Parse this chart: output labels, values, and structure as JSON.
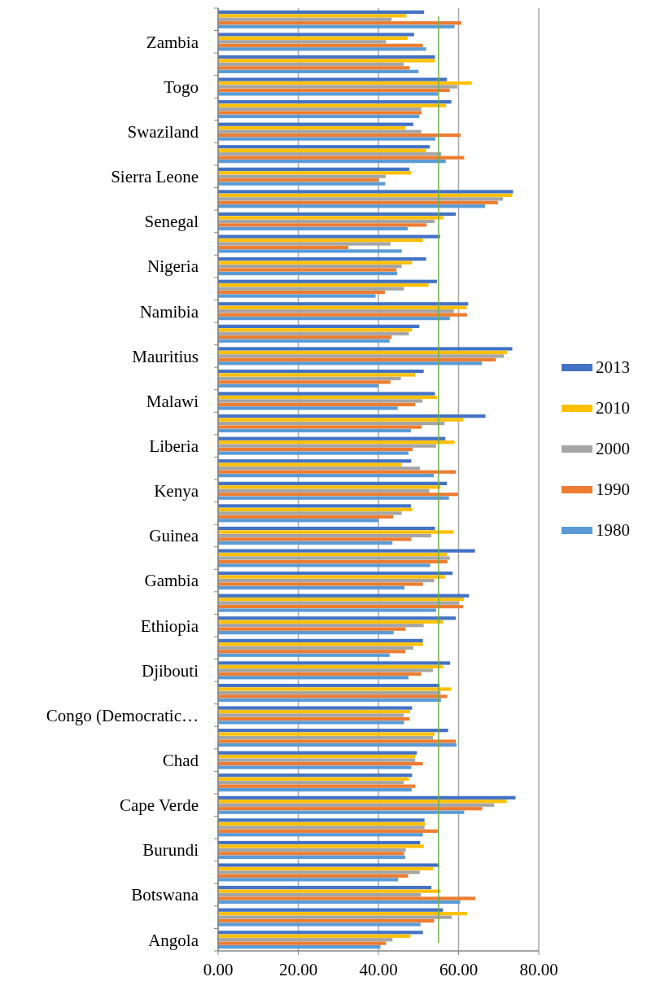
{
  "chart_data": {
    "type": "bar",
    "orientation": "horizontal",
    "categories": [
      null,
      "Zambia",
      null,
      "Togo",
      null,
      "Swaziland",
      null,
      "Sierra Leone",
      null,
      "Senegal",
      null,
      "Nigeria",
      null,
      "Namibia",
      null,
      "Mauritius",
      null,
      "Malawi",
      null,
      "Liberia",
      null,
      "Kenya",
      null,
      "Guinea",
      null,
      "Gambia",
      null,
      "Ethiopia",
      null,
      "Djibouti",
      null,
      "Congo (Democratic…",
      null,
      "Chad",
      null,
      "Cape Verde",
      null,
      "Burundi",
      null,
      "Botswana",
      null,
      "Angola"
    ],
    "series": [
      {
        "name": "2013",
        "color": "#4472c4",
        "values": [
          51.4,
          48.9,
          54.1,
          57.1,
          58.2,
          48.7,
          52.8,
          47.7,
          73.6,
          59.3,
          55.4,
          51.9,
          54.6,
          62.4,
          50.2,
          73.4,
          51.3,
          54.1,
          66.7,
          56.7,
          48.2,
          57.1,
          48.1,
          54.1,
          64.1,
          58.5,
          62.6,
          59.3,
          51.1,
          57.9,
          55.3,
          48.4,
          57.4,
          49.6,
          48.4,
          74.2,
          51.5,
          50.4,
          55.2,
          53.2,
          56.1,
          51.1
        ]
      },
      {
        "name": "2010",
        "color": "#ffc000",
        "values": [
          47.0,
          47.3,
          54.1,
          63.3,
          56.9,
          46.8,
          51.9,
          48.2,
          73.4,
          56.2,
          51.1,
          48.4,
          52.5,
          62.0,
          48.4,
          72.1,
          49.2,
          54.6,
          61.2,
          59.0,
          45.8,
          55.5,
          48.5,
          58.8,
          57.1,
          56.6,
          61.3,
          56.1,
          51.1,
          56.1,
          58.2,
          47.9,
          54.0,
          49.2,
          47.6,
          72.0,
          51.7,
          51.3,
          53.7,
          55.5,
          62.2,
          48.0
        ]
      },
      {
        "name": "2000",
        "color": "#a5a5a5",
        "values": [
          43.3,
          41.9,
          46.3,
          59.7,
          50.7,
          50.7,
          55.7,
          41.8,
          71.1,
          54.0,
          43.0,
          45.8,
          46.4,
          58.8,
          47.6,
          71.3,
          45.6,
          51.0,
          56.5,
          54.4,
          50.4,
          52.7,
          45.8,
          53.2,
          57.8,
          53.9,
          60.1,
          51.3,
          48.7,
          53.6,
          55.5,
          46.3,
          53.6,
          49.2,
          46.3,
          68.9,
          51.5,
          46.8,
          50.3,
          50.6,
          58.3,
          43.5
        ]
      },
      {
        "name": "1990",
        "color": "#ed7d31",
        "values": [
          60.7,
          51.1,
          47.8,
          57.8,
          50.8,
          60.5,
          61.4,
          40.0,
          69.8,
          52.0,
          32.5,
          44.5,
          41.6,
          62.1,
          43.3,
          69.3,
          43.0,
          49.2,
          50.8,
          48.5,
          59.3,
          59.9,
          43.7,
          48.2,
          57.2,
          51.1,
          61.1,
          46.8,
          46.7,
          50.7,
          57.2,
          47.8,
          59.3,
          51.1,
          49.2,
          65.9,
          54.9,
          46.4,
          47.4,
          64.2,
          53.9,
          41.9
        ]
      },
      {
        "name": "1980",
        "color": "#5b9bd5",
        "values": [
          59.0,
          51.9,
          50.0,
          54.8,
          50.2,
          54.2,
          56.8,
          41.7,
          66.6,
          47.3,
          45.8,
          44.7,
          39.3,
          57.8,
          42.8,
          65.8,
          40.0,
          44.8,
          48.1,
          47.5,
          53.8,
          57.6,
          40.0,
          43.5,
          52.9,
          46.5,
          54.4,
          43.8,
          42.8,
          47.5,
          55.6,
          46.4,
          59.5,
          48.2,
          48.3,
          61.4,
          51.1,
          46.7,
          44.9,
          60.4,
          50.5,
          40.5
        ]
      }
    ],
    "xlim": [
      0,
      80
    ],
    "xticks": [
      {
        "value": 0,
        "label": "0.00"
      },
      {
        "value": 20,
        "label": "20.00"
      },
      {
        "value": 40,
        "label": "40.00"
      },
      {
        "value": 60,
        "label": "60.00"
      },
      {
        "value": 80,
        "label": "80.00"
      }
    ],
    "grid": "x",
    "legend": "right",
    "ref_lines": [
      {
        "axis": "x",
        "value": 55,
        "color": "#70ad47"
      }
    ]
  }
}
